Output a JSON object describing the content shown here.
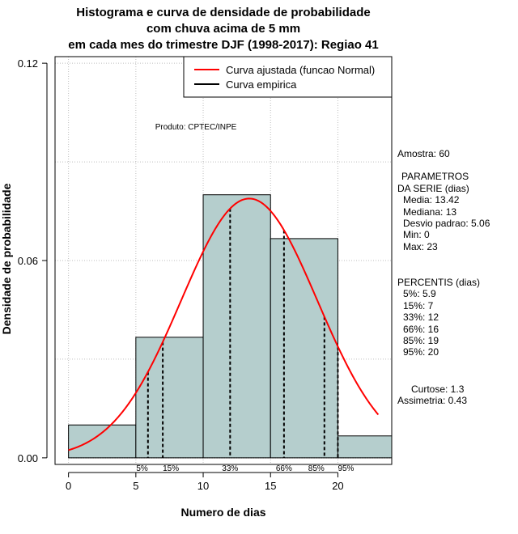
{
  "chart_data": {
    "type": "bar",
    "title_lines": [
      "Histograma e curva de densidade de probabilidade",
      "com chuva acima de 5 mm",
      "em cada mes do trimestre DJF (1998-2017): Regiao 41"
    ],
    "xlabel": "Numero de dias",
    "ylabel": "Densidade de probabilidade",
    "xlim": [
      -1,
      24
    ],
    "ylim": [
      -0.002,
      0.122
    ],
    "x_ticks": [
      0,
      5,
      10,
      15,
      20
    ],
    "x_tick_labels": [
      "0",
      "5",
      "10",
      "15",
      "20"
    ],
    "y_ticks": [
      0.0,
      0.06,
      0.12
    ],
    "y_tick_labels": [
      "0.00",
      "0.06",
      "0.12"
    ],
    "grid_y": [
      0.03,
      0.06,
      0.09,
      0.12
    ],
    "bins": [
      {
        "start": 0,
        "end": 5,
        "density": 0.01
      },
      {
        "start": 5,
        "end": 10,
        "density": 0.036667
      },
      {
        "start": 10,
        "end": 15,
        "density": 0.08
      },
      {
        "start": 15,
        "end": 20,
        "density": 0.066667
      },
      {
        "start": 20,
        "end": 24,
        "density": 0.006667
      }
    ],
    "normal_curve": {
      "name": "Curva ajustada (funcao Normal)",
      "mean": 13.42,
      "sd": 5.06,
      "x_range": [
        0,
        23
      ],
      "color": "#ff0000"
    },
    "empirical_curve": {
      "name": "Curva empirica",
      "color": "#000000"
    },
    "legend_position": "top-right",
    "percentile_lines": [
      {
        "label": "5%",
        "x": 5.9
      },
      {
        "label": "15%",
        "x": 7
      },
      {
        "label": "33%",
        "x": 12
      },
      {
        "label": "66%",
        "x": 16
      },
      {
        "label": "85%",
        "x": 19
      },
      {
        "label": "95%",
        "x": 20
      }
    ],
    "annotation": "Produto: CPTEC/INPE",
    "colors": {
      "bar_fill": "#b5cecd",
      "bar_stroke": "#000000",
      "grid": "#bdbdbd"
    }
  },
  "side_panel": {
    "sample": "Amostra: 60",
    "params_title_1": "PARAMETROS",
    "params_title_2": "DA SERIE (dias)",
    "media": "Media: 13.42",
    "mediana": "Mediana: 13",
    "desvio": "Desvio padrao: 5.06",
    "min": "Min: 0",
    "max": "Max: 23",
    "percentis_title": "PERCENTIS (dias)",
    "p5": "5%: 5.9",
    "p15": "15%: 7",
    "p33": "33%: 12",
    "p66": "66%: 16",
    "p85": "85%: 19",
    "p95": "95%: 20",
    "curtose": "Curtose: 1.3",
    "assimetria": "Assimetria: 0.43"
  }
}
